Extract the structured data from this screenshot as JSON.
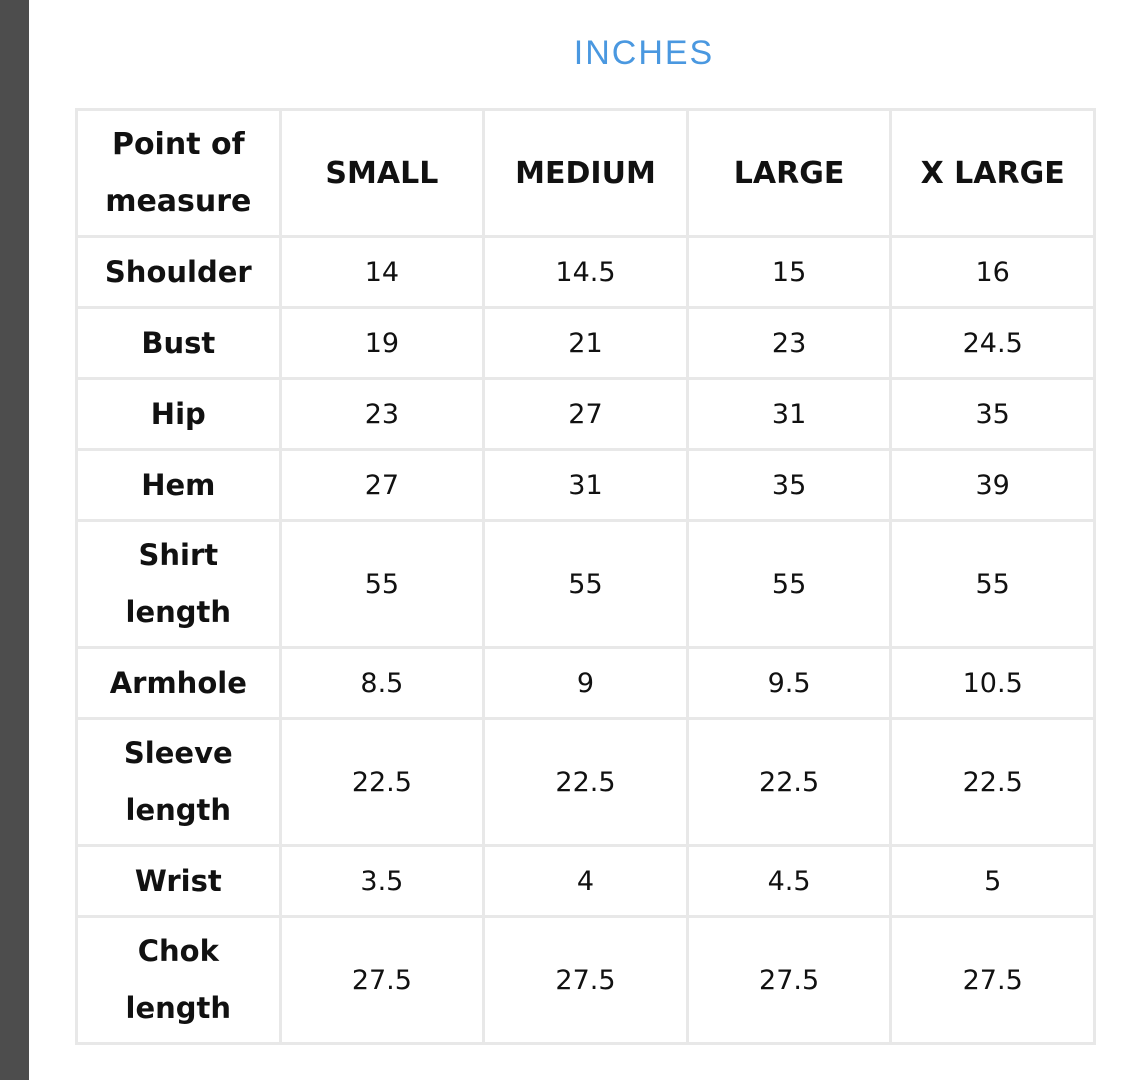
{
  "title": "INCHES",
  "table": {
    "headers": [
      "Point of measure",
      "SMALL",
      "MEDIUM",
      "LARGE",
      "X LARGE"
    ],
    "rows": [
      {
        "label": "Shoulder",
        "values": [
          "14",
          "14.5",
          "15",
          "16"
        ]
      },
      {
        "label": "Bust",
        "values": [
          "19",
          "21",
          "23",
          "24.5"
        ]
      },
      {
        "label": "Hip",
        "values": [
          "23",
          "27",
          "31",
          "35"
        ]
      },
      {
        "label": "Hem",
        "values": [
          "27",
          "31",
          "35",
          "39"
        ]
      },
      {
        "label": "Shirt length",
        "values": [
          "55",
          "55",
          "55",
          "55"
        ]
      },
      {
        "label": "Armhole",
        "values": [
          "8.5",
          "9",
          "9.5",
          "10.5"
        ]
      },
      {
        "label": "Sleeve length",
        "values": [
          "22.5",
          "22.5",
          "22.5",
          "22.5"
        ]
      },
      {
        "label": "Wrist",
        "values": [
          "3.5",
          "4",
          "4.5",
          "5"
        ]
      },
      {
        "label": "Chok length",
        "values": [
          "27.5",
          "27.5",
          "27.5",
          "27.5"
        ]
      }
    ]
  },
  "colors": {
    "title": "#4a98e0",
    "border": "#e8e8e8",
    "sidebar": "#4d4d4d"
  }
}
